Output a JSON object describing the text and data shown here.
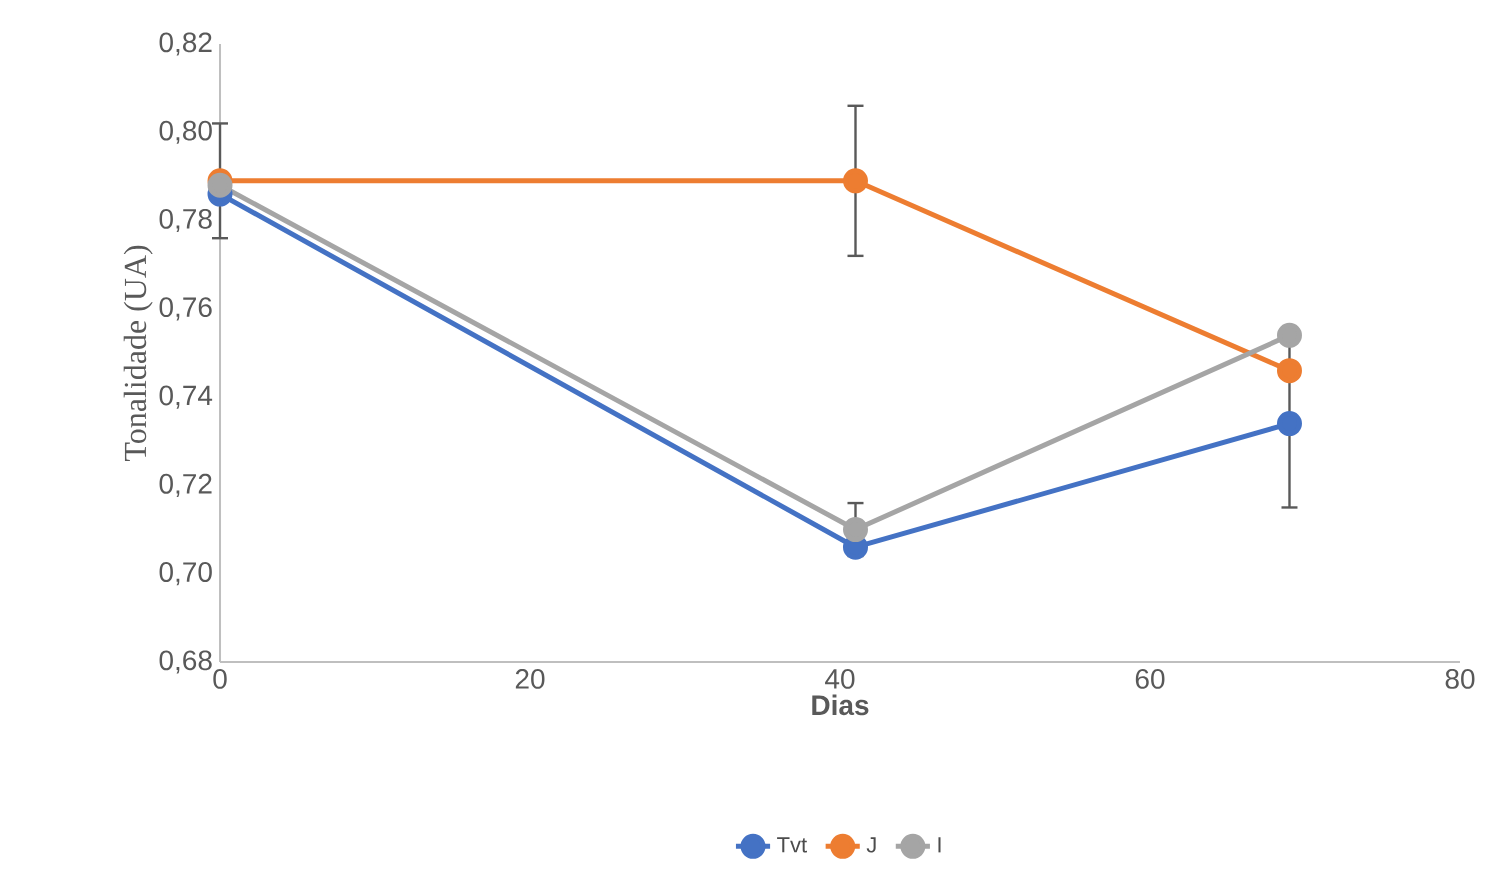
{
  "chart_data": {
    "type": "line",
    "xlabel": "Dias",
    "ylabel": "Tonalidade (UA)",
    "x": [
      0,
      41,
      69
    ],
    "xlim": [
      0,
      80
    ],
    "xticks": [
      0,
      20,
      40,
      60,
      80
    ],
    "ylim": [
      0.68,
      0.82
    ],
    "yticks": [
      {
        "value": 0.68,
        "label": "0,68"
      },
      {
        "value": 0.7,
        "label": "0,70"
      },
      {
        "value": 0.72,
        "label": "0,72"
      },
      {
        "value": 0.74,
        "label": "0,74"
      },
      {
        "value": 0.76,
        "label": "0,76"
      },
      {
        "value": 0.78,
        "label": "0,78"
      },
      {
        "value": 0.8,
        "label": "0,80"
      },
      {
        "value": 0.82,
        "label": "0,82"
      }
    ],
    "series": [
      {
        "name": "Tvt",
        "color": "#4472c4",
        "values": [
          0.786,
          0.706,
          0.734
        ],
        "errors": [
          null,
          null,
          0.019
        ]
      },
      {
        "name": "J",
        "color": "#ed7d31",
        "values": [
          0.789,
          0.789,
          0.746
        ],
        "errors": [
          0.013,
          0.017,
          null
        ]
      },
      {
        "name": "I",
        "color": "#a5a5a5",
        "values": [
          0.788,
          0.71,
          0.754
        ],
        "errors": [
          null,
          0.006,
          null
        ]
      }
    ],
    "marker": "circle",
    "line_style": "solid",
    "grid": false,
    "legend": "bottom"
  }
}
